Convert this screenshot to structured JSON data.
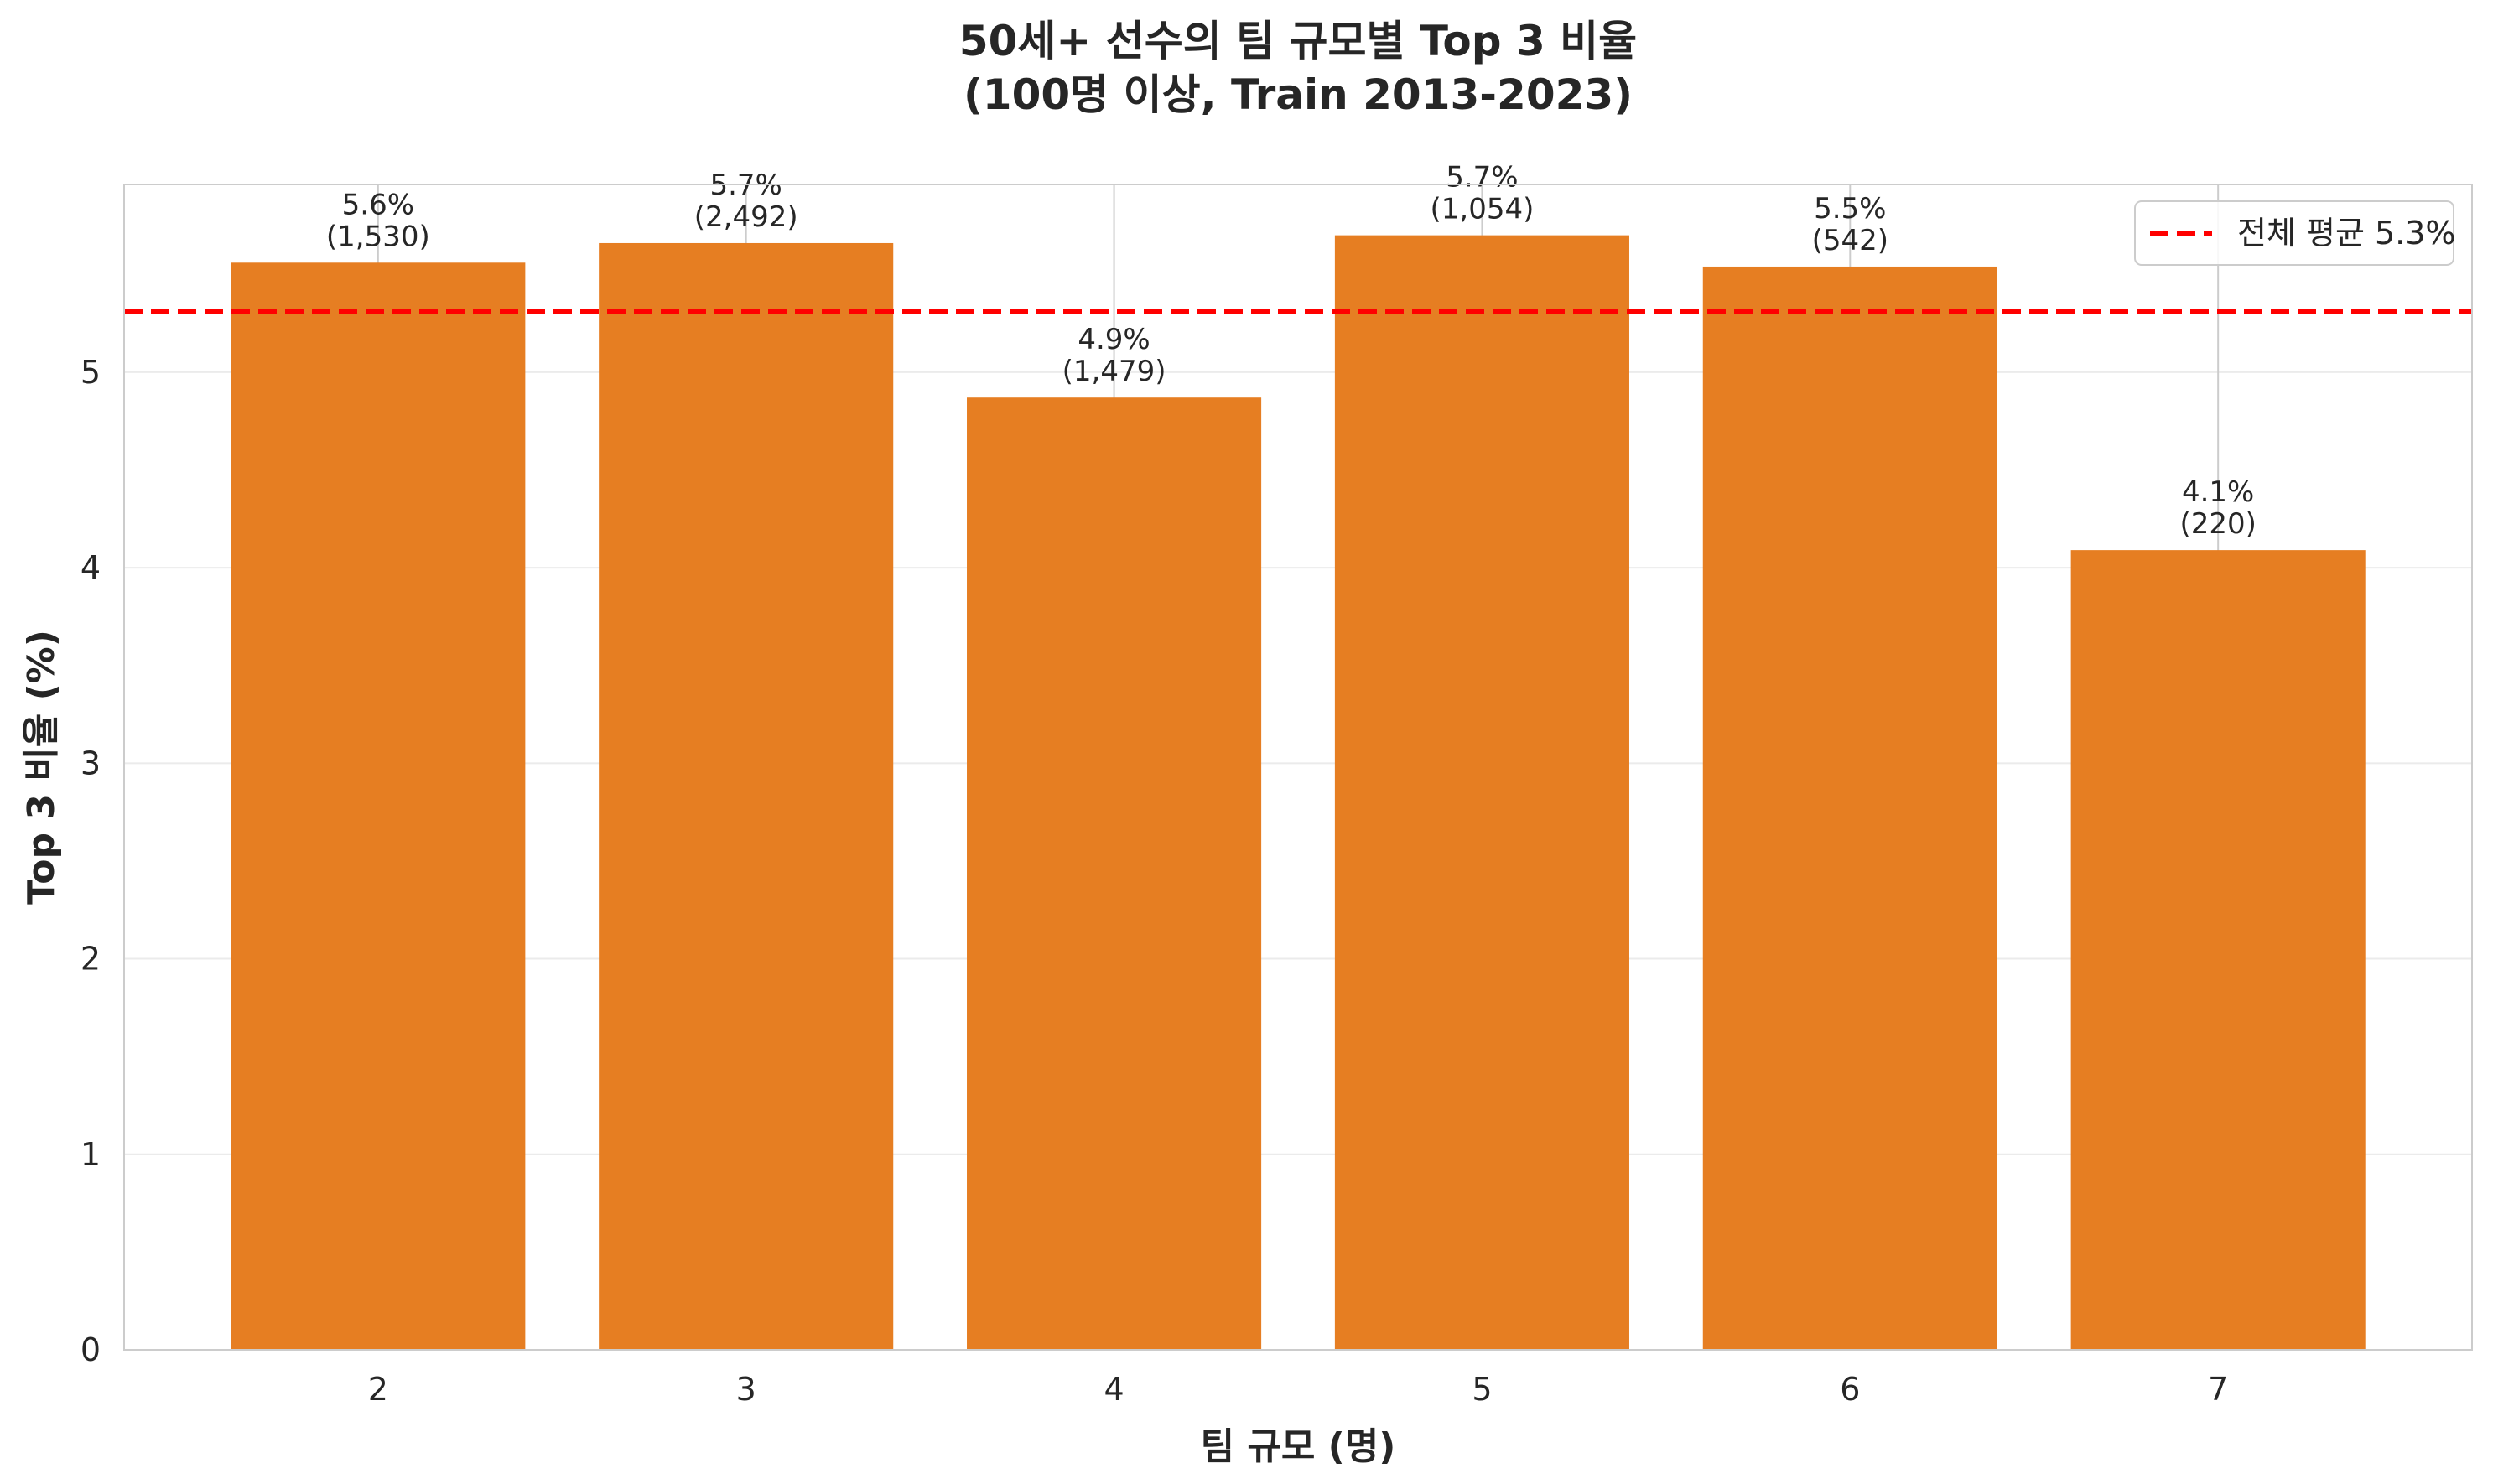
{
  "chart_data": {
    "type": "bar",
    "title_lines": [
      "50세+ 선수의 팀 규모별 Top 3 비율",
      "(100명 이상, Train 2013-2023)"
    ],
    "xlabel": "팀 규모 (명)",
    "ylabel": "Top 3 비율 (%)",
    "categories": [
      "2",
      "3",
      "4",
      "5",
      "6",
      "7"
    ],
    "values": [
      5.56,
      5.66,
      4.87,
      5.7,
      5.54,
      4.09
    ],
    "bar_labels": [
      [
        "5.6%",
        "(1,530)"
      ],
      [
        "5.7%",
        "(2,492)"
      ],
      [
        "4.9%",
        "(1,479)"
      ],
      [
        "5.7%",
        "(1,054)"
      ],
      [
        "5.5%",
        "(542)"
      ],
      [
        "4.1%",
        "(220)"
      ]
    ],
    "ylim": [
      0,
      5.96
    ],
    "yticks": [
      "0",
      "1",
      "2",
      "3",
      "4",
      "5"
    ],
    "reference_line": {
      "value": 5.31,
      "label": "전체 평균 5.3%"
    },
    "legend_position": "top-right",
    "grid": true,
    "colors": {
      "bar": "#e67e22",
      "reference": "#ff0000",
      "grid": "#ebebeb",
      "spine": "#cccccc"
    }
  }
}
